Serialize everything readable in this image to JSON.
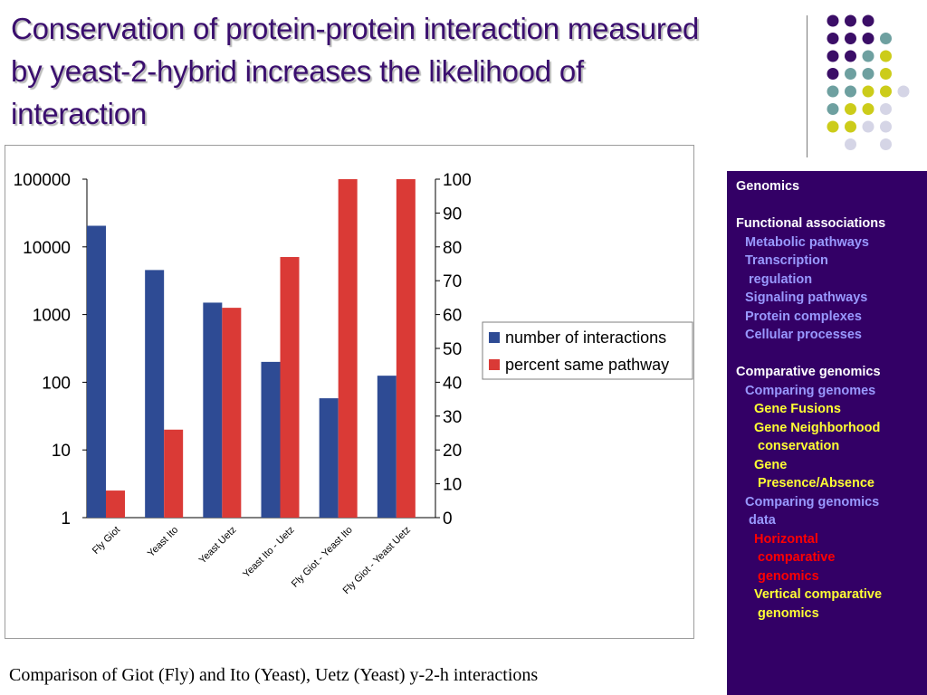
{
  "title": "Conservation of protein-protein interaction measured by yeast-2-hybrid increases the likelihood of interaction",
  "caption": "Comparison of Giot (Fly) and Ito (Yeast), Uetz (Yeast) y-2-h interactions",
  "colors": {
    "title": "#3a0e6e",
    "sidebar_bg": "#330066",
    "series_interactions": "#2e4b94",
    "series_pathway": "#da3a36",
    "dot_purple": "#3b0e67",
    "dot_teal": "#6ea0a0",
    "dot_yellow": "#cccc1a",
    "dot_lavender": "#d5d5e6"
  },
  "decor_dots": [
    [
      "purple",
      "purple",
      "purple",
      ""
    ],
    [
      "purple",
      "purple",
      "purple",
      "teal"
    ],
    [
      "purple",
      "purple",
      "teal",
      "yellow"
    ],
    [
      "purple",
      "teal",
      "teal",
      "yellow"
    ],
    [
      "teal",
      "teal",
      "yellow",
      "yellow",
      "lavender"
    ],
    [
      "teal",
      "yellow",
      "yellow",
      "lavender"
    ],
    [
      "yellow",
      "yellow",
      "lavender",
      "lavender"
    ],
    [
      "",
      "lavender",
      "",
      "lavender"
    ]
  ],
  "chart_data": {
    "type": "bar",
    "categories": [
      "Fly Giot",
      "Yeast Ito",
      "Yeast Uetz",
      "Yeast Ito - Uetz",
      "Fly Giot - Yeast Ito",
      "Fly Giot - Yeast Uetz"
    ],
    "series": [
      {
        "name": "number of interactions",
        "axis": "left",
        "scale": "log",
        "color": "#2e4b94",
        "values": [
          20500,
          4550,
          1500,
          200,
          58,
          125
        ]
      },
      {
        "name": "percent same pathway",
        "axis": "right",
        "scale": "linear",
        "color": "#da3a36",
        "values": [
          8,
          26,
          62,
          77,
          100,
          100
        ]
      }
    ],
    "y_left": {
      "scale": "log",
      "ylim": [
        1,
        100000
      ],
      "ticks": [
        "1",
        "10",
        "100",
        "1000",
        "10000",
        "100000"
      ]
    },
    "y_right": {
      "scale": "linear",
      "ylim": [
        0,
        100
      ],
      "ticks": [
        "0",
        "10",
        "20",
        "30",
        "40",
        "50",
        "60",
        "70",
        "80",
        "90",
        "100"
      ]
    },
    "grid": false,
    "legend": "right"
  },
  "sidebar": {
    "lines": [
      {
        "text": "Genomics",
        "color": "#ffffff",
        "indent": 0
      },
      {
        "text": "",
        "color": "#ffffff",
        "indent": 0
      },
      {
        "text": "Functional associations",
        "color": "#ffffff",
        "indent": 0
      },
      {
        "text": "Metabolic pathways",
        "color": "#9999ff",
        "indent": 10
      },
      {
        "text": "Transcription",
        "color": "#9999ff",
        "indent": 10
      },
      {
        "text": "regulation",
        "color": "#9999ff",
        "indent": 14
      },
      {
        "text": "Signaling pathways",
        "color": "#9999ff",
        "indent": 10
      },
      {
        "text": "Protein complexes",
        "color": "#9999ff",
        "indent": 10
      },
      {
        "text": "Cellular processes",
        "color": "#9999ff",
        "indent": 10
      },
      {
        "text": "",
        "color": "#ffffff",
        "indent": 0
      },
      {
        "text": "Comparative genomics",
        "color": "#ffffff",
        "indent": 0
      },
      {
        "text": "Comparing genomes",
        "color": "#9999ff",
        "indent": 10
      },
      {
        "text": "Gene Fusions",
        "color": "#ffff33",
        "indent": 20
      },
      {
        "text": "Gene Neighborhood",
        "color": "#ffff33",
        "indent": 20
      },
      {
        "text": "conservation",
        "color": "#ffff33",
        "indent": 24
      },
      {
        "text": "Gene",
        "color": "#ffff33",
        "indent": 20
      },
      {
        "text": "Presence/Absence",
        "color": "#ffff33",
        "indent": 24
      },
      {
        "text": "Comparing genomics",
        "color": "#9999ff",
        "indent": 10
      },
      {
        "text": "data",
        "color": "#9999ff",
        "indent": 14
      },
      {
        "text": "Horizontal",
        "color": "#ff0000",
        "indent": 20
      },
      {
        "text": "comparative",
        "color": "#ff0000",
        "indent": 24
      },
      {
        "text": "genomics",
        "color": "#ff0000",
        "indent": 24
      },
      {
        "text": "Vertical comparative",
        "color": "#ffff33",
        "indent": 20
      },
      {
        "text": "genomics",
        "color": "#ffff33",
        "indent": 24
      }
    ]
  }
}
